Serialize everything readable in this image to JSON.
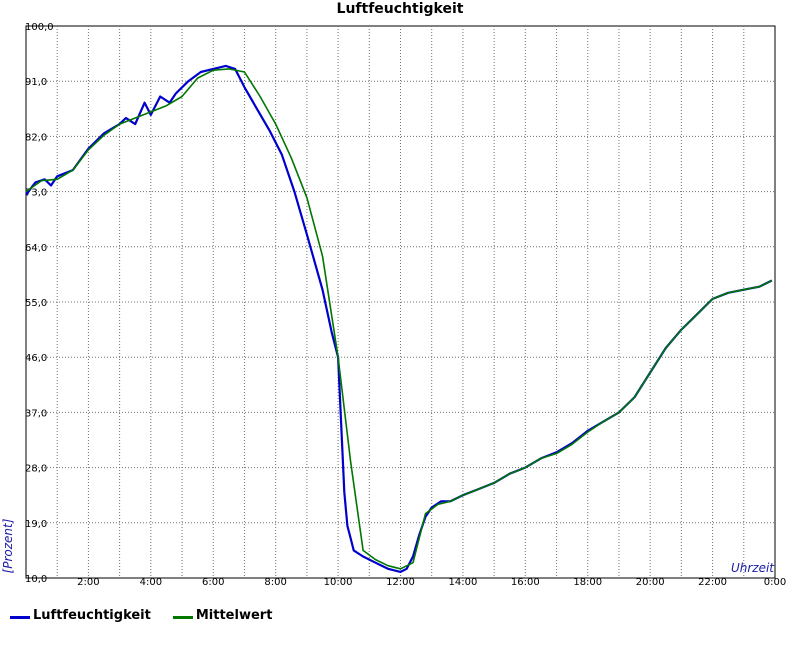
{
  "chart_data": {
    "type": "line",
    "title": "Luftfeuchtigkeit",
    "xlabel": "Uhrzeit",
    "ylabel": "[Prozent]",
    "xlim": [
      0,
      24
    ],
    "ylim": [
      10,
      100
    ],
    "y_ticks": [
      "10,0",
      "19,0",
      "28,0",
      "37,0",
      "46,0",
      "55,0",
      "64,0",
      "73,0",
      "82,0",
      "91,0",
      "100,0"
    ],
    "x_ticks": [
      {
        "x": 2,
        "label": "2:00"
      },
      {
        "x": 4,
        "label": "4:00"
      },
      {
        "x": 6,
        "label": "6:00"
      },
      {
        "x": 8,
        "label": "8:00"
      },
      {
        "x": 10,
        "label": "10:00"
      },
      {
        "x": 12,
        "label": "12:00"
      },
      {
        "x": 14,
        "label": "14:00"
      },
      {
        "x": 16,
        "label": "16:00"
      },
      {
        "x": 18,
        "label": "18:00"
      },
      {
        "x": 20,
        "label": "20:00"
      },
      {
        "x": 22,
        "label": "22:00"
      },
      {
        "x": 24,
        "label": "0:00"
      }
    ],
    "grid": true,
    "legend_position": "bottom-left",
    "series": [
      {
        "name": "Luftfeuchtigkeit",
        "color": "#0000cc",
        "x": [
          0,
          0.3,
          0.6,
          0.8,
          1.0,
          1.5,
          2.0,
          2.5,
          3.0,
          3.2,
          3.5,
          3.8,
          4.0,
          4.3,
          4.6,
          4.8,
          5.2,
          5.6,
          6.0,
          6.4,
          6.7,
          7.0,
          7.4,
          7.8,
          8.2,
          8.6,
          9.0,
          9.5,
          9.8,
          10.0,
          10.2,
          10.3,
          10.4,
          10.5,
          10.8,
          11.2,
          11.6,
          12.0,
          12.2,
          12.4,
          12.6,
          12.8,
          13.0,
          13.3,
          13.6,
          14.0,
          14.5,
          15.0,
          15.5,
          16.0,
          16.5,
          17.0,
          17.5,
          18.0,
          18.5,
          19.0,
          19.5,
          20.0,
          20.5,
          21.0,
          21.5,
          22.0,
          22.5,
          23.0,
          23.5,
          23.9
        ],
        "values": [
          72.5,
          74.5,
          75.0,
          74.0,
          75.5,
          76.5,
          80.0,
          82.5,
          84.0,
          85.0,
          84.0,
          87.5,
          85.5,
          88.5,
          87.5,
          89.0,
          91.0,
          92.5,
          93.0,
          93.5,
          93.0,
          90.0,
          86.5,
          83.0,
          79.0,
          73.0,
          66.0,
          57.0,
          50.0,
          46.0,
          24.0,
          18.5,
          16.5,
          14.5,
          13.5,
          12.5,
          11.5,
          11.0,
          11.5,
          13.5,
          17.0,
          20.0,
          21.5,
          22.5,
          22.5,
          23.5,
          24.5,
          25.5,
          27.0,
          28.0,
          29.5,
          30.5,
          32.0,
          34.0,
          35.5,
          37.0,
          39.5,
          43.5,
          47.5,
          50.5,
          53.0,
          55.5,
          56.5,
          57.0,
          57.5,
          58.5
        ]
      },
      {
        "name": "Mittelwert",
        "color": "#007700",
        "x": [
          0,
          0.5,
          1.0,
          1.5,
          2.0,
          2.5,
          3.0,
          3.5,
          4.0,
          4.5,
          5.0,
          5.5,
          6.0,
          6.5,
          7.0,
          7.5,
          8.0,
          8.5,
          9.0,
          9.5,
          10.0,
          10.4,
          10.8,
          11.2,
          11.6,
          12.0,
          12.4,
          12.8,
          13.2,
          13.6,
          14.0,
          14.5,
          15.0,
          15.5,
          16.0,
          16.5,
          17.0,
          17.5,
          18.0,
          18.5,
          19.0,
          19.5,
          20.0,
          20.5,
          21.0,
          21.5,
          22.0,
          22.5,
          23.0,
          23.5,
          23.9
        ],
        "values": [
          73.0,
          74.8,
          75.0,
          76.5,
          79.8,
          82.2,
          84.0,
          85.0,
          86.0,
          87.0,
          88.5,
          91.5,
          92.8,
          93.0,
          92.5,
          88.5,
          84.0,
          78.5,
          72.0,
          62.5,
          46.0,
          29.0,
          14.5,
          13.0,
          12.0,
          11.5,
          12.5,
          20.5,
          22.0,
          22.5,
          23.5,
          24.5,
          25.5,
          27.0,
          28.0,
          29.5,
          30.3,
          31.8,
          33.8,
          35.5,
          37.0,
          39.5,
          43.5,
          47.5,
          50.5,
          53.0,
          55.5,
          56.5,
          57.0,
          57.5,
          58.5
        ]
      }
    ]
  }
}
